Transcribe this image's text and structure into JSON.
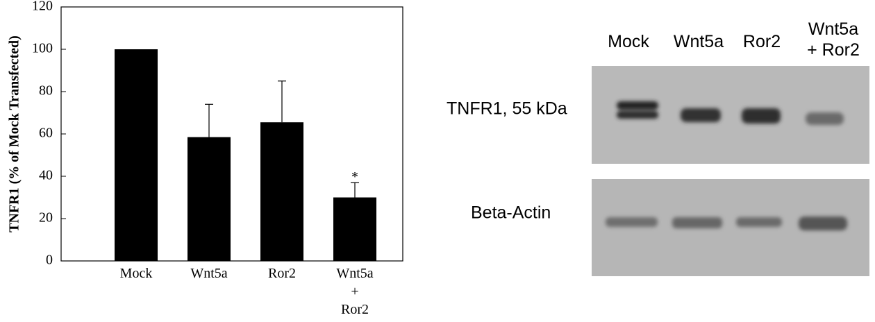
{
  "chart_data": {
    "type": "bar",
    "y_label": "TNFR1 (% of Mock Transfected)",
    "categories": [
      "Mock",
      "Wnt5a",
      "Ror2",
      "Wnt5a + Ror2"
    ],
    "values": [
      100,
      58.5,
      65.5,
      30
    ],
    "errors": [
      null,
      15.5,
      19.5,
      7
    ],
    "annotation": "*",
    "color": "#000000",
    "ylim": [
      0,
      120
    ],
    "yticks": [
      0,
      20,
      40,
      60,
      80,
      100,
      120
    ]
  },
  "blot": {
    "columns": [
      "Mock",
      "Wnt5a",
      "Ror2",
      "Wnt5a + Ror2"
    ],
    "rows": [
      "TNFR1, 55 kDa",
      "Beta-Actin"
    ]
  }
}
